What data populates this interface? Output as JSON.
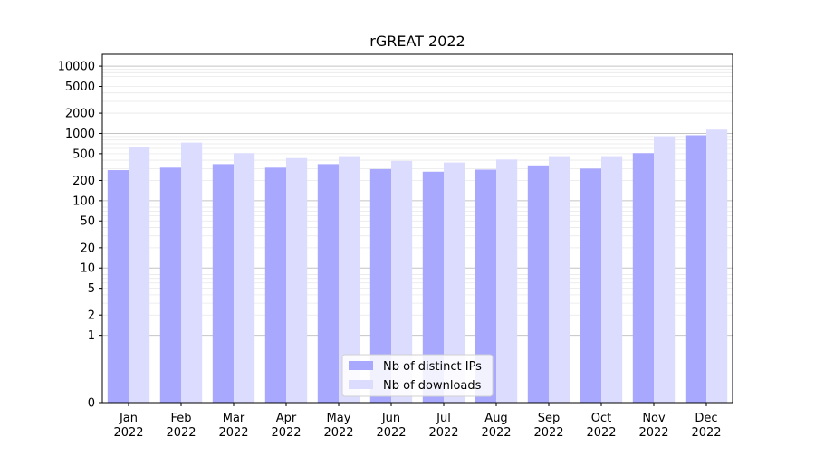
{
  "chart_data": {
    "type": "bar",
    "title": "rGREAT 2022",
    "xlabel": "",
    "ylabel": "",
    "yscale": "symlog",
    "ylim": [
      0,
      15000
    ],
    "yticks": [
      0,
      1,
      2,
      5,
      10,
      20,
      50,
      100,
      200,
      500,
      1000,
      2000,
      5000,
      10000
    ],
    "ytick_labels": [
      "0",
      "1",
      "2",
      "5",
      "10",
      "20",
      "50",
      "100",
      "200",
      "500",
      "1000",
      "2000",
      "5000",
      "10000"
    ],
    "grid": "horizontal",
    "legend_position": "bottom-center",
    "categories": [
      "Jan\n2022",
      "Feb\n2022",
      "Mar\n2022",
      "Apr\n2022",
      "May\n2022",
      "Jun\n2022",
      "Jul\n2022",
      "Aug\n2022",
      "Sep\n2022",
      "Oct\n2022",
      "Nov\n2022",
      "Dec\n2022"
    ],
    "series": [
      {
        "name": "Nb of distinct IPs",
        "color": "#a8a8ff",
        "values": [
          285,
          310,
          350,
          310,
          350,
          295,
          270,
          290,
          335,
          300,
          510,
          940
        ]
      },
      {
        "name": "Nb of downloads",
        "color": "#dcdcff",
        "values": [
          620,
          730,
          510,
          430,
          460,
          390,
          370,
          410,
          460,
          460,
          910,
          1140
        ]
      }
    ]
  }
}
